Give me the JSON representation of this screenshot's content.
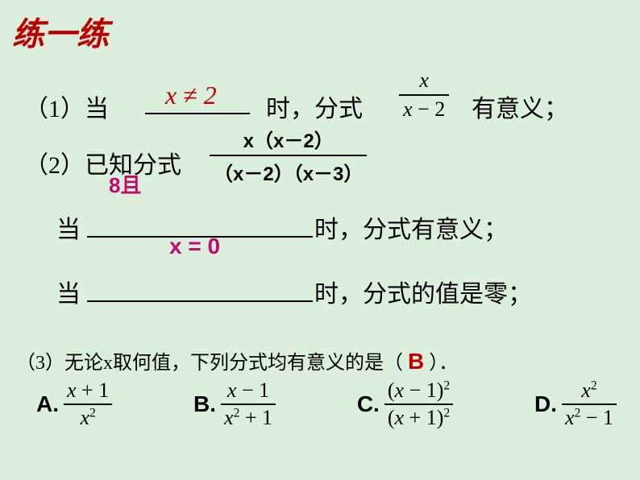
{
  "colors": {
    "background": "#dcefdd",
    "title_color": "#c00000",
    "answer_red": "#c00000",
    "answer_magenta": "#c20a6e",
    "text": "#000000"
  },
  "title": "练一练",
  "q1": {
    "prefix": "（1）当",
    "answer": "x ≠ 2",
    "mid": "时，分式",
    "frac_top": "x",
    "frac_bot": "x − 2",
    "suffix": "有意义；"
  },
  "q2": {
    "prefix": "（2）已知分式",
    "frac_top": "x（x－2）",
    "frac_bot": "（x－2）（x－3）",
    "overlap_text": "8且",
    "line_a_prefix": "当",
    "line_a_answer": "x = 0",
    "line_a_suffix": "时，分式有意义；",
    "line_b_prefix": "当",
    "line_b_suffix": "时，分式的值是零；"
  },
  "q3": {
    "text_prefix": "（3）无论x取何值，下列分式均有意义的是（",
    "answer": "B",
    "text_suffix": "）．",
    "options": {
      "A": {
        "top": "x + 1",
        "bot": "x²"
      },
      "B": {
        "top": "x − 1",
        "bot": "x² + 1"
      },
      "C": {
        "top": "(x − 1)²",
        "bot": "(x + 1)²"
      },
      "D": {
        "top": "x²",
        "bot": "x² − 1"
      }
    }
  }
}
